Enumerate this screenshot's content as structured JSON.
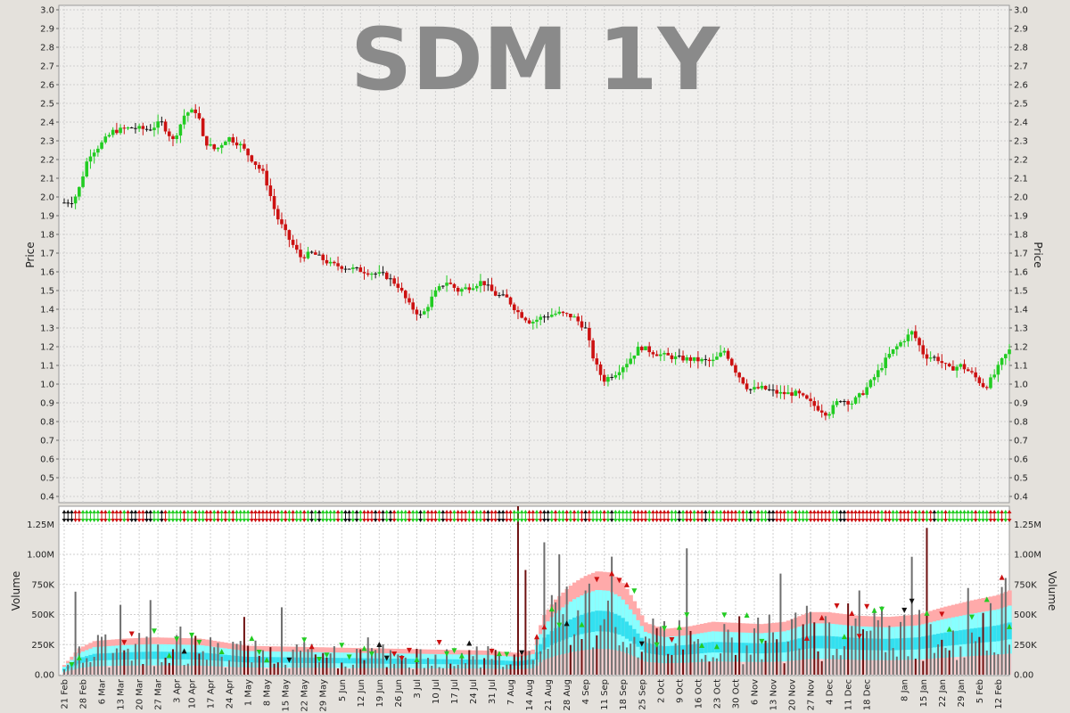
{
  "chart_data": {
    "type": "candlestick",
    "title": "SDM 1Y",
    "price_panel": {
      "ylabel": "Price",
      "ylim": [
        0.4,
        3.0
      ],
      "yticks": [
        "0.4",
        "0.5",
        "0.6",
        "0.7",
        "0.8",
        "0.9",
        "1.0",
        "1.1",
        "1.2",
        "1.3",
        "1.4",
        "1.5",
        "1.6",
        "1.7",
        "1.8",
        "1.9",
        "2.0",
        "2.1",
        "2.2",
        "2.3",
        "2.4",
        "2.5",
        "2.6",
        "2.7",
        "2.8",
        "2.9",
        "3.0"
      ],
      "grid": true
    },
    "volume_panel": {
      "ylabel": "Volume",
      "ylim": [
        0,
        1400000
      ],
      "yticks": [
        {
          "label": "0.00",
          "value": 0
        },
        {
          "label": "250K",
          "value": 250000
        },
        {
          "label": "500K",
          "value": 500000
        },
        {
          "label": "750K",
          "value": 750000
        },
        {
          "label": "1.00M",
          "value": 1000000
        },
        {
          "label": "1.25M",
          "value": 1250000
        }
      ],
      "grid": true
    },
    "x_labels": [
      "21 Feb",
      "28 Feb",
      "6 Mar",
      "13 Mar",
      "20 Mar",
      "27 Mar",
      "3 Apr",
      "10 Apr",
      "17 Apr",
      "24 Apr",
      "1 May",
      "8 May",
      "15 May",
      "22 May",
      "29 May",
      "5 Jun",
      "12 Jun",
      "19 Jun",
      "26 Jun",
      "3 Jul",
      "10 Jul",
      "17 Jul",
      "24 Jul",
      "31 Jul",
      "7 Aug",
      "14 Aug",
      "21 Aug",
      "28 Aug",
      "4 Sep",
      "11 Sep",
      "18 Sep",
      "25 Sep",
      "2 Oct",
      "9 Oct",
      "16 Oct",
      "23 Oct",
      "30 Oct",
      "6 Nov",
      "13 Nov",
      "20 Nov",
      "27 Nov",
      "4 Dec",
      "11 Dec",
      "18 Dec",
      "8 Jan",
      "15 Jan",
      "22 Jan",
      "29 Jan",
      "5 Feb",
      "12 Feb"
    ],
    "x_label_index": [
      0,
      5,
      10,
      15,
      20,
      25,
      30,
      34,
      39,
      44,
      49,
      54,
      59,
      64,
      69,
      74,
      79,
      84,
      89,
      94,
      99,
      104,
      109,
      114,
      119,
      124,
      129,
      134,
      139,
      144,
      149,
      154,
      159,
      164,
      169,
      174,
      179,
      184,
      189,
      194,
      199,
      204,
      209,
      214,
      224,
      229,
      234,
      239,
      244,
      249
    ],
    "n_bars": 253,
    "price_path": [
      [
        0,
        1.97
      ],
      [
        3,
        1.98
      ],
      [
        5,
        2.05
      ],
      [
        8,
        2.22
      ],
      [
        12,
        2.28
      ],
      [
        16,
        2.35
      ],
      [
        22,
        2.37
      ],
      [
        28,
        2.36
      ],
      [
        32,
        2.4
      ],
      [
        36,
        2.3
      ],
      [
        40,
        2.45
      ],
      [
        44,
        2.46
      ],
      [
        46,
        2.3
      ],
      [
        50,
        2.25
      ],
      [
        54,
        2.32
      ],
      [
        58,
        2.28
      ],
      [
        62,
        2.2
      ],
      [
        66,
        2.12
      ],
      [
        70,
        1.9
      ],
      [
        74,
        1.78
      ],
      [
        78,
        1.68
      ],
      [
        82,
        1.7
      ],
      [
        88,
        1.64
      ],
      [
        94,
        1.62
      ],
      [
        100,
        1.6
      ],
      [
        106,
        1.58
      ],
      [
        110,
        1.53
      ],
      [
        114,
        1.42
      ],
      [
        118,
        1.36
      ],
      [
        122,
        1.48
      ],
      [
        126,
        1.55
      ],
      [
        130,
        1.5
      ],
      [
        134,
        1.52
      ],
      [
        138,
        1.55
      ],
      [
        142,
        1.48
      ],
      [
        146,
        1.46
      ],
      [
        150,
        1.38
      ],
      [
        154,
        1.33
      ],
      [
        158,
        1.36
      ],
      [
        163,
        1.38
      ],
      [
        168,
        1.36
      ],
      [
        172,
        1.3
      ],
      [
        175,
        1.12
      ],
      [
        178,
        1.02
      ],
      [
        182,
        1.06
      ],
      [
        186,
        1.12
      ],
      [
        190,
        1.2
      ],
      [
        196,
        1.16
      ],
      [
        202,
        1.14
      ],
      [
        208,
        1.13
      ],
      [
        214,
        1.12
      ],
      [
        218,
        1.18
      ],
      [
        222,
        1.06
      ],
      [
        226,
        0.97
      ],
      [
        230,
        0.98
      ],
      [
        236,
        0.95
      ],
      [
        242,
        0.95
      ],
      [
        248,
        0.88
      ],
      [
        252,
        0.84
      ],
      [
        256,
        0.92
      ],
      [
        260,
        0.9
      ],
      [
        264,
        0.96
      ],
      [
        268,
        1.05
      ],
      [
        272,
        1.15
      ],
      [
        276,
        1.22
      ],
      [
        280,
        1.28
      ],
      [
        284,
        1.15
      ],
      [
        288,
        1.14
      ],
      [
        292,
        1.08
      ],
      [
        296,
        1.1
      ],
      [
        300,
        1.05
      ],
      [
        304,
        0.98
      ],
      [
        307,
        1.05
      ],
      [
        310,
        1.14
      ],
      [
        312,
        1.18
      ]
    ],
    "volume_avg_path": [
      [
        0,
        80000
      ],
      [
        5,
        220000
      ],
      [
        10,
        280000
      ],
      [
        20,
        300000
      ],
      [
        30,
        310000
      ],
      [
        45,
        300000
      ],
      [
        60,
        240000
      ],
      [
        80,
        230000
      ],
      [
        100,
        220000
      ],
      [
        120,
        210000
      ],
      [
        140,
        200000
      ],
      [
        150,
        180000
      ],
      [
        155,
        210000
      ],
      [
        158,
        480000
      ],
      [
        162,
        620000
      ],
      [
        168,
        760000
      ],
      [
        172,
        820000
      ],
      [
        176,
        860000
      ],
      [
        180,
        850000
      ],
      [
        184,
        780000
      ],
      [
        188,
        620000
      ],
      [
        192,
        430000
      ],
      [
        198,
        380000
      ],
      [
        206,
        400000
      ],
      [
        214,
        440000
      ],
      [
        222,
        430000
      ],
      [
        230,
        420000
      ],
      [
        238,
        440000
      ],
      [
        246,
        520000
      ],
      [
        252,
        520000
      ],
      [
        262,
        490000
      ],
      [
        272,
        480000
      ],
      [
        282,
        500000
      ],
      [
        290,
        560000
      ],
      [
        300,
        620000
      ],
      [
        308,
        660000
      ],
      [
        312,
        700000
      ]
    ],
    "volume_spikes": [
      [
        4,
        690000
      ],
      [
        11,
        330000
      ],
      [
        19,
        580000
      ],
      [
        28,
        620000
      ],
      [
        38,
        400000
      ],
      [
        60,
        480000
      ],
      [
        72,
        560000
      ],
      [
        100,
        310000
      ],
      [
        150,
        1400000
      ],
      [
        152,
        870000
      ],
      [
        158,
        1100000
      ],
      [
        164,
        1000000
      ],
      [
        172,
        700000
      ],
      [
        206,
        1050000
      ],
      [
        236,
        840000
      ],
      [
        262,
        700000
      ],
      [
        280,
        980000
      ],
      [
        285,
        1220000
      ]
    ],
    "colors": {
      "up": "#22cc22",
      "down": "#cc1111",
      "flat": "#111111",
      "vol_pink": "#ffaaaa",
      "vol_lightcyan": "#88ffff",
      "vol_cyan": "#33e0f0",
      "vol_bar": "#6e6e6e",
      "vol_bar_dark": "#6e1111",
      "panel_bg": "#f0efed",
      "grid": "#cfcfcf"
    }
  }
}
